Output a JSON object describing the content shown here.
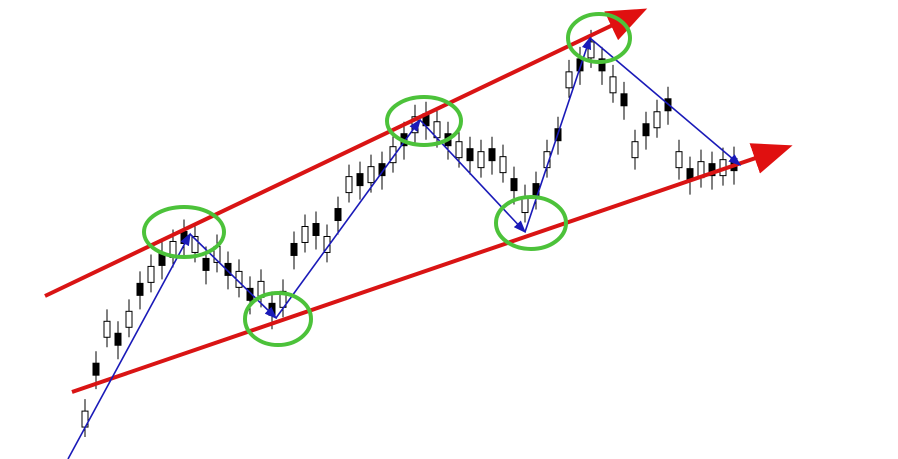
{
  "chart_data": {
    "type": "candlestick",
    "categories": [
      null,
      null,
      null,
      null,
      null,
      null,
      null,
      null,
      null,
      null,
      null,
      null,
      null,
      null,
      null,
      null,
      null,
      null,
      null,
      null,
      null,
      null,
      null,
      null,
      null,
      null,
      null,
      null,
      null,
      null,
      null,
      null,
      null,
      null,
      null,
      null,
      null,
      null,
      null,
      null,
      null,
      null,
      null,
      null,
      null,
      null,
      null,
      null,
      null,
      null,
      null,
      null,
      null,
      null,
      null,
      null,
      null,
      null,
      null,
      null
    ],
    "open": [
      32,
      96,
      122,
      126,
      132,
      176,
      177,
      206,
      202,
      228,
      207,
      201,
      197,
      196,
      172,
      171,
      162,
      156,
      152,
      216,
      217,
      236,
      207,
      251,
      267,
      286,
      277,
      296,
      297,
      326,
      327,
      346,
      322,
      326,
      302,
      311,
      292,
      311,
      287,
      281,
      247,
      276,
      292,
      331,
      372,
      401,
      402,
      401,
      367,
      366,
      302,
      336,
      332,
      361,
      292,
      291,
      282,
      296,
      284,
      301
    ],
    "high": [
      60,
      108,
      150,
      138,
      160,
      188,
      205,
      218,
      230,
      240,
      235,
      213,
      225,
      208,
      200,
      183,
      190,
      168,
      180,
      228,
      245,
      248,
      235,
      263,
      295,
      298,
      305,
      308,
      325,
      338,
      355,
      358,
      350,
      338,
      330,
      323,
      320,
      323,
      315,
      293,
      275,
      288,
      320,
      343,
      400,
      413,
      430,
      413,
      395,
      378,
      330,
      348,
      360,
      373,
      320,
      303,
      310,
      308,
      312,
      313
    ],
    "low": [
      22,
      70,
      112,
      100,
      122,
      150,
      167,
      180,
      192,
      202,
      197,
      175,
      187,
      170,
      162,
      145,
      152,
      130,
      142,
      190,
      207,
      210,
      197,
      225,
      257,
      260,
      267,
      270,
      287,
      300,
      317,
      320,
      312,
      300,
      292,
      285,
      282,
      285,
      277,
      255,
      237,
      250,
      282,
      305,
      362,
      375,
      392,
      375,
      357,
      340,
      290,
      310,
      322,
      335,
      280,
      265,
      272,
      270,
      274,
      275
    ],
    "close": [
      48,
      84,
      138,
      114,
      148,
      164,
      193,
      194,
      218,
      216,
      223,
      189,
      213,
      184,
      188,
      159,
      178,
      144,
      168,
      204,
      233,
      224,
      223,
      239,
      283,
      274,
      293,
      284,
      313,
      314,
      343,
      334,
      338,
      314,
      318,
      299,
      308,
      299,
      303,
      269,
      263,
      264,
      308,
      319,
      388,
      389,
      418,
      389,
      383,
      354,
      318,
      324,
      348,
      349,
      308,
      279,
      298,
      284,
      300,
      289
    ],
    "ylim": [
      0,
      460
    ],
    "up_color": "#ffffff",
    "down_color": "#000000"
  }
}
